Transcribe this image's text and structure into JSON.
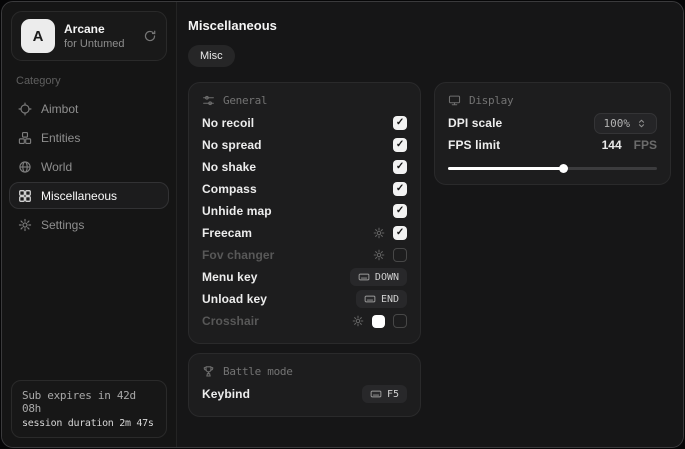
{
  "app": {
    "name": "Arcane",
    "subtitle": "for Untumed",
    "avatar_letter": "A"
  },
  "sidebar": {
    "category_label": "Category",
    "items": [
      {
        "label": "Aimbot",
        "icon": "crosshair-icon",
        "active": false
      },
      {
        "label": "Entities",
        "icon": "entities-icon",
        "active": false
      },
      {
        "label": "World",
        "icon": "globe-icon",
        "active": false
      },
      {
        "label": "Miscellaneous",
        "icon": "grid-icon",
        "active": true
      },
      {
        "label": "Settings",
        "icon": "gear-icon",
        "active": false
      }
    ],
    "status": {
      "line1": "Sub expires in 42d 08h",
      "line2": "session duration 2m 47s"
    }
  },
  "main": {
    "title": "Miscellaneous",
    "tabs": [
      {
        "label": "Misc",
        "active": true
      }
    ],
    "panels": {
      "general": {
        "title": "General",
        "icon": "sliders-icon",
        "rows": [
          {
            "label": "No recoil",
            "control": "checkbox",
            "checked": true
          },
          {
            "label": "No spread",
            "control": "checkbox",
            "checked": true
          },
          {
            "label": "No shake",
            "control": "checkbox",
            "checked": true
          },
          {
            "label": "Compass",
            "control": "checkbox",
            "checked": true
          },
          {
            "label": "Unhide map",
            "control": "checkbox",
            "checked": true
          },
          {
            "label": "Freecam",
            "control": "checkbox",
            "checked": true,
            "has_settings": true
          },
          {
            "label": "Fov changer",
            "control": "checkbox",
            "checked": false,
            "has_settings": true,
            "disabled": true
          },
          {
            "label": "Menu key",
            "control": "keybind",
            "key": "DOWN"
          },
          {
            "label": "Unload key",
            "control": "keybind",
            "key": "END"
          },
          {
            "label": "Crosshair",
            "control": "checkbox",
            "checked": false,
            "has_settings": true,
            "swatch_color": "#ffffff",
            "disabled": true
          }
        ]
      },
      "battle_mode": {
        "title": "Battle mode",
        "icon": "trophy-icon",
        "rows": [
          {
            "label": "Keybind",
            "control": "keybind",
            "key": "F5"
          }
        ]
      },
      "display": {
        "title": "Display",
        "icon": "monitor-icon",
        "dpi_scale": {
          "label": "DPI scale",
          "value": "100%"
        },
        "fps_limit": {
          "label": "FPS limit",
          "value": "144",
          "unit": "FPS",
          "slider_percent": 55
        }
      }
    }
  },
  "colors": {
    "window_bg": "#161616",
    "sidebar_bg": "#151515",
    "panel_bg": "#1d1d1e",
    "border": "#2a2a2b",
    "chip_bg": "#28282a",
    "text_primary": "#ededed",
    "text_muted": "#8f8f8f",
    "text_disabled": "#585858",
    "checkbox_checked": "#f2f2f2",
    "slider_fill": "#ffffff"
  }
}
